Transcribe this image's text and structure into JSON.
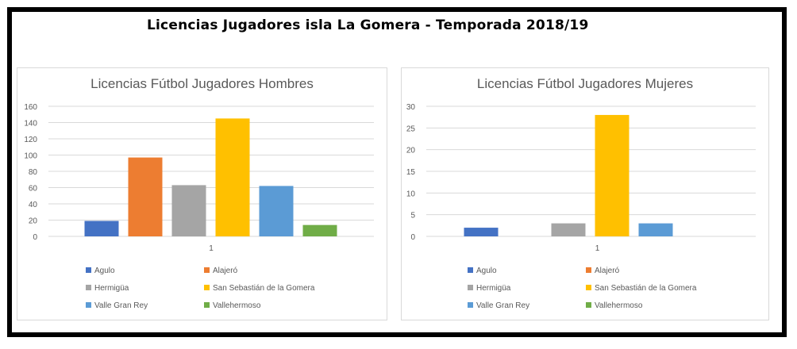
{
  "page": {
    "title": "Licencias Jugadores isla La Gomera - Temporada 2018/19"
  },
  "legend_labels": [
    "Agulo",
    "Alajeró",
    "Hermigüa",
    "San Sebastián de la Gomera",
    "Valle Gran Rey",
    "Vallehermoso"
  ],
  "colors": {
    "Agulo": "#4472c4",
    "Alajeró": "#ed7d31",
    "Hermigüa": "#a5a5a5",
    "San Sebastián de la Gomera": "#ffc000",
    "Valle Gran Rey": "#5b9bd5",
    "Vallehermoso": "#70ad47"
  },
  "chart_data": [
    {
      "type": "bar",
      "title": "Licencias Fútbol Jugadores Hombres",
      "categories": [
        "1"
      ],
      "ylim": [
        0,
        160
      ],
      "yticks": [
        0,
        20,
        40,
        60,
        80,
        100,
        120,
        140,
        160
      ],
      "grid": true,
      "legend_position": "bottom",
      "series": [
        {
          "name": "Agulo",
          "values": [
            19
          ]
        },
        {
          "name": "Alajeró",
          "values": [
            97
          ]
        },
        {
          "name": "Hermigüa",
          "values": [
            63
          ]
        },
        {
          "name": "San Sebastián de la Gomera",
          "values": [
            145
          ]
        },
        {
          "name": "Valle Gran Rey",
          "values": [
            62
          ]
        },
        {
          "name": "Vallehermoso",
          "values": [
            14
          ]
        }
      ]
    },
    {
      "type": "bar",
      "title": "Licencias Fútbol Jugadores Mujeres",
      "categories": [
        "1"
      ],
      "ylim": [
        0,
        30
      ],
      "yticks": [
        0,
        5,
        10,
        15,
        20,
        25,
        30
      ],
      "grid": true,
      "legend_position": "bottom",
      "series": [
        {
          "name": "Agulo",
          "values": [
            2
          ]
        },
        {
          "name": "Alajeró",
          "values": [
            0
          ]
        },
        {
          "name": "Hermigüa",
          "values": [
            3
          ]
        },
        {
          "name": "San Sebastián de la Gomera",
          "values": [
            28
          ]
        },
        {
          "name": "Valle Gran Rey",
          "values": [
            3
          ]
        },
        {
          "name": "Vallehermoso",
          "values": [
            0
          ]
        }
      ]
    }
  ]
}
